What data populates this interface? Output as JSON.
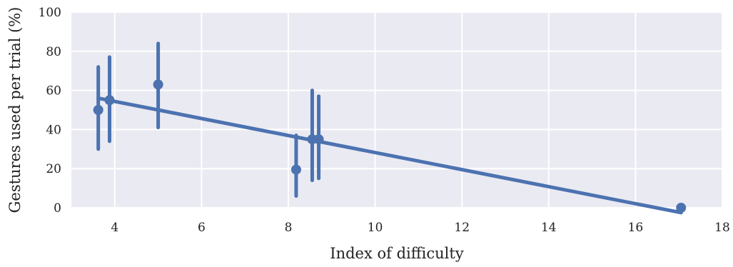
{
  "colors": {
    "background": "#EAEAF2",
    "grid": "#FFFFFF",
    "series": "#4C72B0",
    "text": "#222222"
  },
  "chart_data": {
    "type": "scatter",
    "xlabel": "Index of difficulty",
    "ylabel": "Gestures used per trial (%)",
    "xlim": [
      3,
      18
    ],
    "ylim": [
      0,
      100
    ],
    "xticks": [
      4,
      6,
      8,
      10,
      12,
      14,
      16,
      18
    ],
    "yticks": [
      0,
      20,
      40,
      60,
      80,
      100
    ],
    "grid": true,
    "points": [
      {
        "x": 3.62,
        "y": 50,
        "err_low": 30,
        "err_high": 72
      },
      {
        "x": 3.88,
        "y": 55,
        "err_low": 34,
        "err_high": 77
      },
      {
        "x": 5.0,
        "y": 63,
        "err_low": 41,
        "err_high": 84
      },
      {
        "x": 8.18,
        "y": 19.5,
        "err_low": 6,
        "err_high": 37
      },
      {
        "x": 8.55,
        "y": 35,
        "err_low": 14,
        "err_high": 60
      },
      {
        "x": 8.7,
        "y": 35,
        "err_low": 15,
        "err_high": 57
      },
      {
        "x": 17.05,
        "y": 0,
        "err_low": 0,
        "err_high": 0
      }
    ],
    "regression": {
      "x": [
        3.62,
        17.05
      ],
      "y": [
        56,
        -2.5
      ]
    }
  }
}
